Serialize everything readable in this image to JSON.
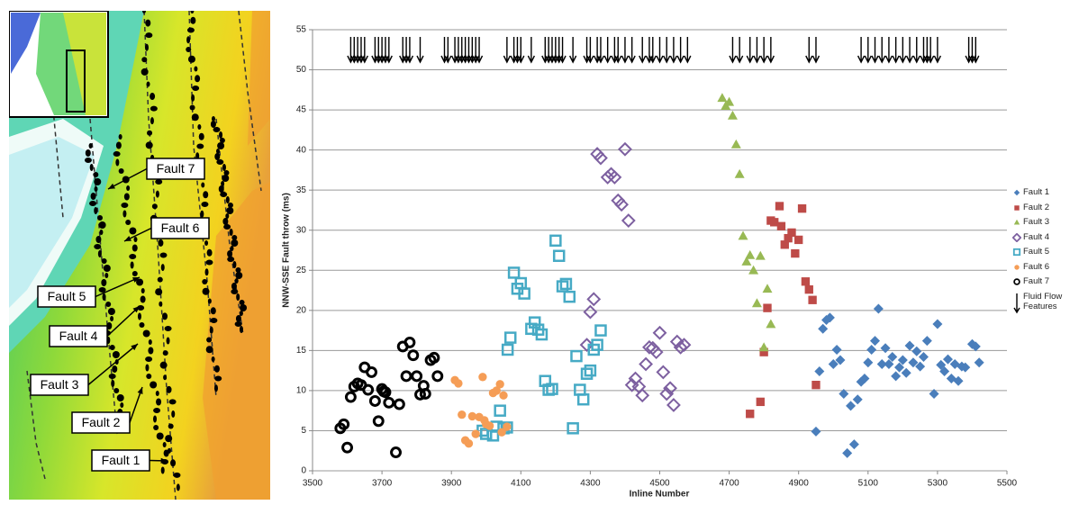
{
  "map": {
    "labels": [
      "Fault 7",
      "Fault 6",
      "Fault 5",
      "Fault 4",
      "Fault 3",
      "Fault 2",
      "Fault 1"
    ]
  },
  "chart_data": {
    "type": "scatter",
    "x_label": "Inline Number",
    "y_label": "NNW-SSE Fault throw (ms)",
    "xlim": [
      3500,
      5500
    ],
    "xticks": [
      3500,
      3700,
      3900,
      4100,
      4300,
      4500,
      4700,
      4900,
      5100,
      5300,
      5500
    ],
    "ylim": [
      0,
      55
    ],
    "yticks": [
      0,
      5,
      10,
      15,
      20,
      25,
      30,
      35,
      40,
      45,
      50,
      55
    ],
    "grid": true,
    "legend": "right",
    "series": [
      {
        "name": "Fault 1",
        "color": "#4a7ebb",
        "marker": "diamond",
        "filled": true,
        "x": [
          4950,
          4960,
          4970,
          4980,
          4990,
          5000,
          5010,
          5020,
          5030,
          5040,
          5050,
          5060,
          5070,
          5080,
          5090,
          5100,
          5110,
          5120,
          5130,
          5140,
          5150,
          5160,
          5170,
          5180,
          5190,
          5200,
          5210,
          5220,
          5230,
          5240,
          5250,
          5260,
          5270,
          5290,
          5300,
          5310,
          5320,
          5330,
          5340,
          5350,
          5360,
          5370,
          5380,
          5400,
          5410,
          5420
        ],
        "values": [
          4.9,
          12.4,
          17.7,
          18.8,
          19.1,
          13.3,
          15.1,
          13.8,
          9.6,
          2.2,
          8.1,
          3.3,
          8.9,
          11.1,
          11.5,
          13.5,
          15.1,
          16.2,
          20.2,
          13.3,
          15.3,
          13.3,
          14.2,
          11.8,
          12.9,
          13.8,
          12.2,
          15.6,
          13.5,
          14.9,
          13.0,
          14.2,
          16.2,
          9.6,
          18.3,
          13.2,
          12.4,
          13.9,
          11.5,
          13.3,
          11.2,
          13.0,
          12.9,
          15.8,
          15.5,
          13.5
        ]
      },
      {
        "name": "Fault 2",
        "color": "#be4b48",
        "marker": "square",
        "filled": true,
        "x": [
          4760,
          4790,
          4800,
          4810,
          4820,
          4830,
          4845,
          4850,
          4860,
          4870,
          4880,
          4890,
          4900,
          4910,
          4920,
          4930,
          4940,
          4950
        ],
        "values": [
          7.1,
          8.6,
          14.8,
          20.3,
          31.2,
          31.0,
          33.0,
          30.5,
          28.2,
          29.0,
          29.7,
          27.1,
          28.8,
          32.7,
          23.6,
          22.6,
          21.3,
          10.7
        ]
      },
      {
        "name": "Fault 3",
        "color": "#98b954",
        "marker": "triangle",
        "filled": true,
        "x": [
          4680,
          4690,
          4700,
          4710,
          4720,
          4730,
          4740,
          4750,
          4760,
          4770,
          4780,
          4790,
          4800,
          4810,
          4820
        ],
        "values": [
          46.5,
          45.5,
          46.0,
          44.3,
          40.7,
          37.0,
          29.3,
          26.1,
          26.9,
          25.0,
          20.9,
          26.8,
          15.4,
          22.7,
          18.3
        ]
      },
      {
        "name": "Fault 4",
        "color": "#7d60a0",
        "marker": "diamond",
        "filled": false,
        "x": [
          4290,
          4300,
          4310,
          4320,
          4330,
          4350,
          4360,
          4370,
          4380,
          4390,
          4400,
          4410,
          4420,
          4430,
          4440,
          4450,
          4460,
          4470,
          4480,
          4490,
          4500,
          4510,
          4520,
          4530,
          4540,
          4550,
          4560,
          4570
        ],
        "values": [
          15.7,
          19.8,
          21.4,
          39.5,
          39.0,
          36.6,
          37.0,
          36.6,
          33.7,
          33.2,
          40.1,
          31.2,
          10.7,
          11.5,
          10.5,
          9.4,
          13.3,
          15.4,
          15.3,
          14.8,
          17.2,
          12.3,
          9.6,
          10.3,
          8.2,
          16.1,
          15.4,
          15.7
        ]
      },
      {
        "name": "Fault 5",
        "color": "#46aac5",
        "marker": "square",
        "filled": false,
        "x": [
          3990,
          4000,
          4020,
          4030,
          4040,
          4050,
          4060,
          4062,
          4070,
          4080,
          4090,
          4100,
          4110,
          4130,
          4140,
          4150,
          4160,
          4170,
          4180,
          4190,
          4200,
          4210,
          4220,
          4230,
          4240,
          4250,
          4260,
          4270,
          4280,
          4290,
          4300,
          4310,
          4320,
          4330
        ],
        "values": [
          5.0,
          4.6,
          4.4,
          5.5,
          7.5,
          5.3,
          5.4,
          15.1,
          16.6,
          24.7,
          22.7,
          23.4,
          22.1,
          17.7,
          18.5,
          17.6,
          17.0,
          11.2,
          10.1,
          10.2,
          28.7,
          26.8,
          23.0,
          23.3,
          21.7,
          5.3,
          14.3,
          10.1,
          8.9,
          12.1,
          12.5,
          15.1,
          15.7,
          17.5
        ]
      },
      {
        "name": "Fault 6",
        "color": "#f59d56",
        "marker": "circle",
        "filled": true,
        "x": [
          3910,
          3920,
          3930,
          3940,
          3950,
          3960,
          3970,
          3980,
          3990,
          3995,
          4000,
          4010,
          4020,
          4030,
          4040,
          4045,
          4050,
          4060
        ],
        "values": [
          11.3,
          10.9,
          7.0,
          3.8,
          3.4,
          6.8,
          4.6,
          6.7,
          11.7,
          6.3,
          5.8,
          5.6,
          9.7,
          10.0,
          10.8,
          4.8,
          9.4,
          5.5
        ]
      },
      {
        "name": "Fault 7",
        "color": "#000000",
        "marker": "circle",
        "filled": false,
        "x": [
          3580,
          3590,
          3600,
          3610,
          3620,
          3630,
          3640,
          3650,
          3660,
          3670,
          3680,
          3690,
          3700,
          3705,
          3710,
          3720,
          3740,
          3750,
          3760,
          3770,
          3780,
          3790,
          3800,
          3810,
          3820,
          3825,
          3840,
          3850,
          3860
        ],
        "values": [
          5.3,
          5.8,
          2.9,
          9.2,
          10.5,
          10.9,
          10.7,
          12.9,
          10.1,
          12.3,
          8.7,
          6.2,
          10.2,
          9.9,
          9.8,
          8.5,
          2.3,
          8.3,
          15.5,
          11.8,
          16.0,
          14.4,
          11.8,
          9.5,
          10.6,
          9.6,
          13.8,
          14.1,
          11.8
        ]
      }
    ],
    "fluid_flow": {
      "name": "Fluid Flow Features",
      "color": "#000000",
      "x": [
        3610,
        3620,
        3630,
        3640,
        3650,
        3680,
        3690,
        3700,
        3710,
        3720,
        3760,
        3770,
        3780,
        3810,
        3880,
        3890,
        3910,
        3920,
        3930,
        3940,
        3950,
        3960,
        3970,
        3980,
        4060,
        4080,
        4090,
        4100,
        4130,
        4170,
        4180,
        4190,
        4200,
        4210,
        4220,
        4250,
        4290,
        4300,
        4320,
        4330,
        4350,
        4370,
        4380,
        4400,
        4420,
        4450,
        4470,
        4480,
        4500,
        4520,
        4540,
        4560,
        4580,
        4710,
        4730,
        4760,
        4780,
        4800,
        4820,
        4930,
        4950,
        5080,
        5100,
        5120,
        5140,
        5160,
        5180,
        5200,
        5220,
        5240,
        5260,
        5270,
        5280,
        5300,
        5390,
        5400,
        5410
      ]
    }
  }
}
